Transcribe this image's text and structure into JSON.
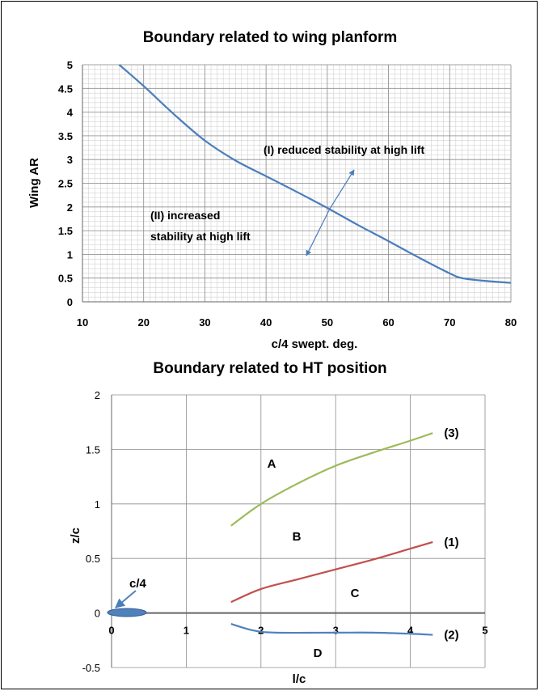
{
  "chart_data": [
    {
      "type": "line",
      "title": "Boundary related to wing planform",
      "xlabel": "c/4 swept. deg.",
      "ylabel": "Wing AR",
      "xlim": [
        10,
        80
      ],
      "ylim": [
        0,
        5
      ],
      "xticks": [
        "10",
        "20",
        "30",
        "40",
        "50",
        "60",
        "70",
        "80"
      ],
      "yticks": [
        "0",
        "0.5",
        "1",
        "1.5",
        "2",
        "2.5",
        "3",
        "3.5",
        "4",
        "4.5",
        "5"
      ],
      "grid": true,
      "series": [
        {
          "color": "#4a7ebb",
          "x": [
            16,
            20,
            25,
            30,
            35,
            40,
            45,
            50,
            55,
            60,
            65,
            70,
            72,
            75,
            80
          ],
          "y": [
            5.0,
            4.55,
            3.95,
            3.4,
            2.98,
            2.65,
            2.32,
            1.98,
            1.62,
            1.28,
            0.93,
            0.6,
            0.5,
            0.45,
            0.4
          ]
        }
      ],
      "annotations": {
        "region_1": "(I) reduced stability at high lift",
        "region_2_line1": "(II) increased",
        "region_2_line2": "stability at high lift"
      }
    },
    {
      "type": "line",
      "title": "Boundary related to HT position",
      "xlabel": "l/c",
      "ylabel": "z/c",
      "xlim": [
        0,
        5
      ],
      "ylim": [
        -0.5,
        2
      ],
      "xticks": [
        "0",
        "1",
        "2",
        "3",
        "4",
        "5"
      ],
      "yticks": [
        "-0.5",
        "0",
        "0.5",
        "1",
        "1.5",
        "2"
      ],
      "grid": true,
      "series": [
        {
          "name": "(3)",
          "color": "#9bbb59",
          "x": [
            1.6,
            2.0,
            2.5,
            3.0,
            3.5,
            4.0,
            4.3
          ],
          "y": [
            0.8,
            1.0,
            1.19,
            1.35,
            1.47,
            1.58,
            1.65
          ]
        },
        {
          "name": "(1)",
          "color": "#c0504d",
          "x": [
            1.6,
            2.0,
            2.5,
            3.0,
            3.5,
            4.0,
            4.3
          ],
          "y": [
            0.1,
            0.22,
            0.31,
            0.4,
            0.49,
            0.59,
            0.65
          ]
        },
        {
          "name": "(2)",
          "color": "#4f81bd",
          "x": [
            1.6,
            1.9,
            2.2,
            3.0,
            3.5,
            4.0,
            4.3
          ],
          "y": [
            -0.1,
            -0.16,
            -0.18,
            -0.18,
            -0.18,
            -0.19,
            -0.2
          ]
        }
      ],
      "regions": [
        "A",
        "B",
        "C",
        "D"
      ],
      "annotation": "c/4"
    }
  ]
}
